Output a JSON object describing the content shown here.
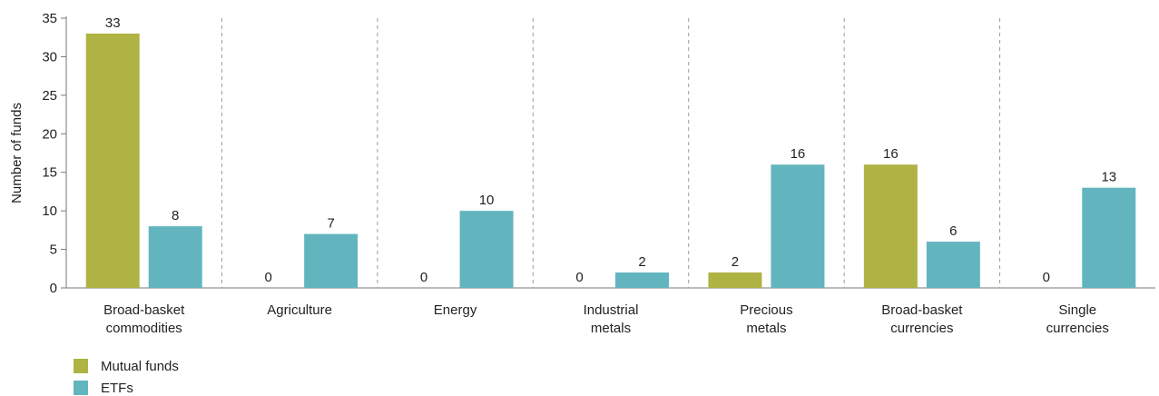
{
  "chart_data": {
    "type": "bar",
    "categories": [
      [
        "Broad-basket",
        "commodities"
      ],
      [
        "Agriculture"
      ],
      [
        "Energy"
      ],
      [
        "Industrial",
        "metals"
      ],
      [
        "Precious",
        "metals"
      ],
      [
        "Broad-basket",
        "currencies"
      ],
      [
        "Single",
        "currencies"
      ]
    ],
    "series": [
      {
        "name": "Mutual funds",
        "values": [
          33,
          0,
          0,
          0,
          2,
          16,
          0
        ],
        "color": "#aeb343"
      },
      {
        "name": "ETFs",
        "values": [
          8,
          7,
          10,
          2,
          16,
          6,
          13
        ],
        "color": "#62b5bf"
      }
    ],
    "ylabel": "Number of funds",
    "ylim": [
      0,
      35
    ],
    "yticks": [
      0,
      5,
      10,
      15,
      20,
      25,
      30,
      35
    ],
    "separators": "dashed",
    "legend_position": "bottom-left"
  }
}
